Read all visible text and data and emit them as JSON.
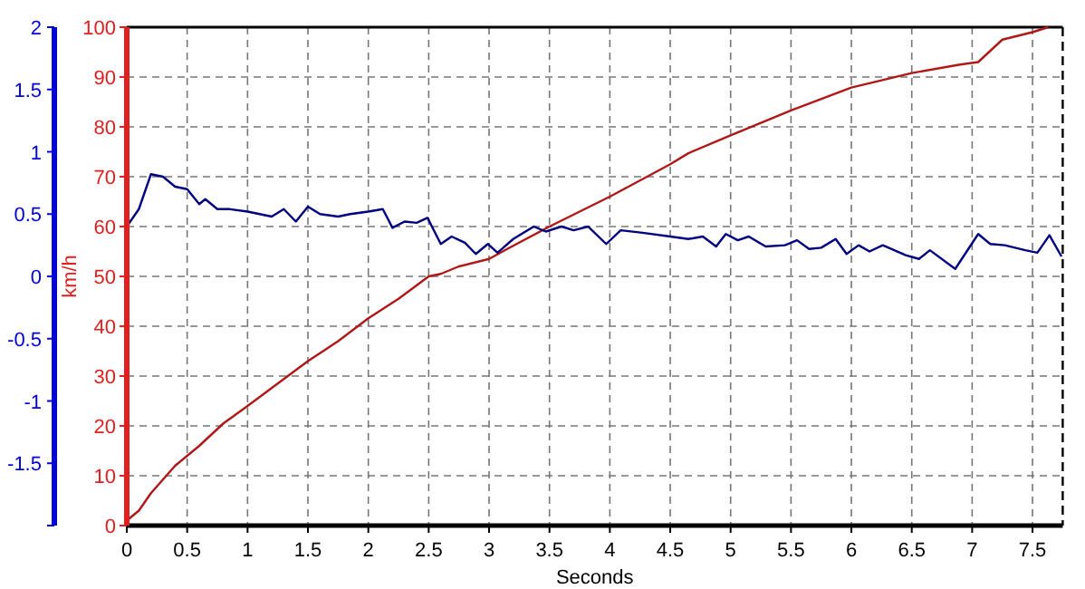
{
  "chart_data": {
    "type": "line",
    "xlabel": "Seconds",
    "ylabel": "km/h",
    "xlim": [
      0,
      7.75
    ],
    "xticks": [
      0,
      0.5,
      1,
      1.5,
      2,
      2.5,
      3,
      3.5,
      4,
      4.5,
      5,
      5.5,
      6,
      6.5,
      7,
      7.5
    ],
    "ylim": [
      0,
      100
    ],
    "yticks": [
      0,
      10,
      20,
      30,
      40,
      50,
      60,
      70,
      80,
      90,
      100
    ],
    "y2lim": [
      -2,
      2
    ],
    "y2ticks": [
      {
        "value": -2,
        "label": null
      },
      -1.5,
      -1,
      -0.5,
      0,
      0.5,
      1,
      1.5,
      2
    ],
    "grid": true,
    "line_style": "solid",
    "marker": "none",
    "series": [
      {
        "color": "#b01818",
        "x": [
          0,
          0.1,
          0.2,
          0.4,
          0.5,
          0.6,
          0.8,
          1,
          1.25,
          1.5,
          1.75,
          2,
          2.25,
          2.5,
          2.6,
          2.75,
          3,
          3.15,
          3.5,
          4,
          4.5,
          4.65,
          5,
          5.5,
          6,
          6.5,
          6.9,
          7.05,
          7.25,
          7.5,
          7.63
        ],
        "values": [
          1,
          3,
          6.5,
          12,
          14,
          16,
          20.5,
          24,
          28.5,
          33,
          37,
          41.6,
          45.5,
          50,
          50.5,
          52,
          53.5,
          55.5,
          60,
          66,
          72.5,
          74.7,
          78.3,
          83.3,
          87.9,
          90.8,
          92.5,
          93,
          97.5,
          99,
          100
        ]
      },
      {
        "color": "#000080",
        "axis": "y2",
        "x": [
          0,
          0.1,
          0.2,
          0.3,
          0.4,
          0.5,
          0.6,
          0.65,
          0.75,
          0.85,
          1,
          1.2,
          1.3,
          1.4,
          1.5,
          1.6,
          1.75,
          1.85,
          2,
          2.12,
          2.2,
          2.3,
          2.4,
          2.49,
          2.6,
          2.69,
          2.8,
          2.89,
          2.99,
          3.07,
          3.2,
          3.37,
          3.47,
          3.6,
          3.7,
          3.82,
          3.97,
          4.09,
          4.27,
          4.5,
          4.65,
          4.77,
          4.88,
          4.96,
          5.06,
          5.15,
          5.29,
          5.45,
          5.55,
          5.65,
          5.75,
          5.87,
          5.96,
          6.06,
          6.15,
          6.26,
          6.45,
          6.56,
          6.65,
          6.86,
          7.05,
          7.15,
          7.27,
          7.44,
          7.54,
          7.64,
          7.74
        ],
        "values": [
          0.4,
          0.54,
          0.82,
          0.8,
          0.72,
          0.7,
          0.58,
          0.62,
          0.54,
          0.54,
          0.52,
          0.48,
          0.54,
          0.44,
          0.56,
          0.5,
          0.48,
          0.5,
          0.52,
          0.54,
          0.39,
          0.44,
          0.43,
          0.47,
          0.26,
          0.32,
          0.27,
          0.18,
          0.26,
          0.19,
          0.3,
          0.4,
          0.36,
          0.4,
          0.37,
          0.4,
          0.26,
          0.37,
          0.35,
          0.32,
          0.3,
          0.32,
          0.24,
          0.34,
          0.29,
          0.32,
          0.24,
          0.25,
          0.29,
          0.22,
          0.23,
          0.3,
          0.18,
          0.25,
          0.2,
          0.25,
          0.17,
          0.14,
          0.21,
          0.06,
          0.34,
          0.26,
          0.25,
          0.21,
          0.19,
          0.33,
          0.16
        ]
      }
    ]
  }
}
